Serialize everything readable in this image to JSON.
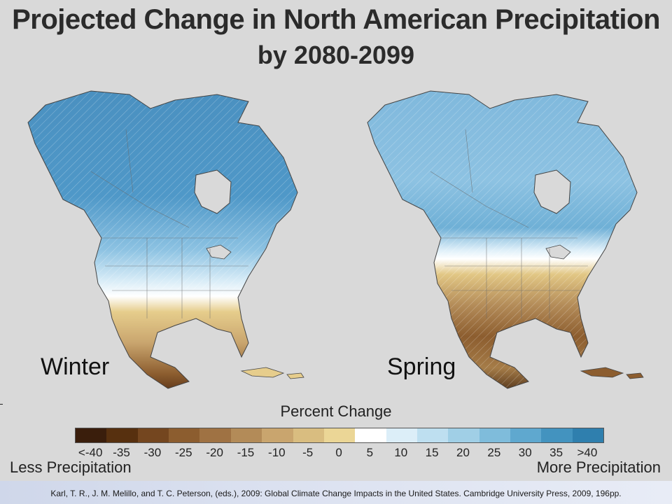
{
  "title_line1": "Projected Change in North American Precipitation",
  "title_line2": "by 2080-2099",
  "maps": [
    {
      "label": "Winter"
    },
    {
      "label": "Spring"
    }
  ],
  "legend": {
    "title": "Percent Change",
    "ticks": [
      "<-40",
      "-35",
      "-30",
      "-25",
      "-20",
      "-15",
      "-10",
      "-5",
      "0",
      "5",
      "10",
      "15",
      "20",
      "25",
      "30",
      "35",
      ">40"
    ],
    "colors": [
      "#3a1e0c",
      "#57300f",
      "#74461f",
      "#8c5d2f",
      "#9f7243",
      "#b38b58",
      "#c9a56e",
      "#d9bd80",
      "#ebd696",
      "#ffffff",
      "#dceef8",
      "#bedff0",
      "#a0cfe6",
      "#7fbcdb",
      "#5fa8cf",
      "#4393bf",
      "#2f7fae"
    ],
    "left_label": "Less Precipitation",
    "right_label": "More Precipitation"
  },
  "citation": "Karl, T. R., J. M. Melillo, and T. C. Peterson, (eds.), 2009:  Global Climate Change Impacts in the United States. Cambridge University Press, 2009, 196pp."
}
